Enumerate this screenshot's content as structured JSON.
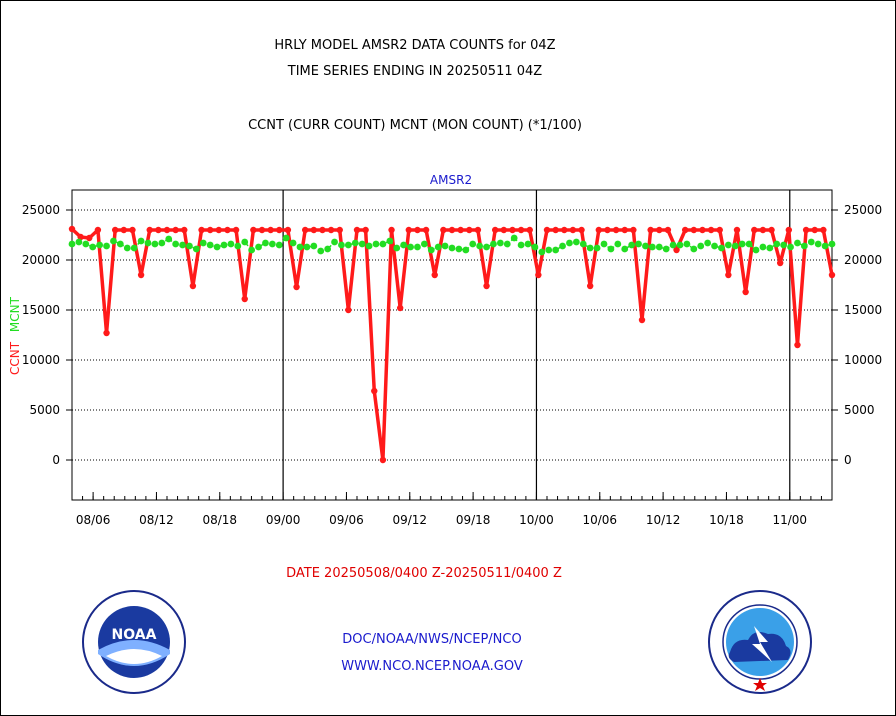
{
  "header": {
    "title_line1": "HRLY MODEL AMSR2 DATA COUNTS for 04Z",
    "title_line2": "TIME SERIES ENDING IN 20250511 04Z",
    "subtitle": "CCNT (CURR COUNT) MCNT (MON COUNT) (*1/100)"
  },
  "footer": {
    "date_range": "DATE 20250508/0400 Z-20250511/0400 Z",
    "org_line1": "DOC/NOAA/NWS/NCEP/NCO",
    "org_line2": "WWW.NCO.NCEP.NOAA.GOV"
  },
  "logos": {
    "left": {
      "icon": "noaa-logo-icon",
      "text": "NOAA"
    },
    "right": {
      "icon": "nws-logo-icon"
    }
  },
  "colors": {
    "ccnt": "#ff1a1a",
    "mcnt": "#22dd22",
    "title_blue": "#1a1acd",
    "date_red": "#e00000"
  },
  "chart_data": {
    "type": "line",
    "title": "AMSR2",
    "ylabel_left": [
      "CCNT",
      "MCNT"
    ],
    "ylim": [
      -4000,
      27000
    ],
    "yticks": [
      0,
      5000,
      10000,
      15000,
      20000,
      25000
    ],
    "ytick_labels": [
      "0",
      "5000",
      "10000",
      "15000",
      "20000",
      "25000"
    ],
    "x_range_hours": [
      0,
      72
    ],
    "x_ticks": [
      {
        "hour": 2,
        "label": "08/06"
      },
      {
        "hour": 8,
        "label": "08/12"
      },
      {
        "hour": 14,
        "label": "08/18"
      },
      {
        "hour": 20,
        "label": "09/00"
      },
      {
        "hour": 26,
        "label": "09/06"
      },
      {
        "hour": 32,
        "label": "09/12"
      },
      {
        "hour": 38,
        "label": "09/18"
      },
      {
        "hour": 44,
        "label": "10/00"
      },
      {
        "hour": 50,
        "label": "10/06"
      },
      {
        "hour": 56,
        "label": "10/12"
      },
      {
        "hour": 62,
        "label": "10/18"
      },
      {
        "hour": 68,
        "label": "11/00"
      }
    ],
    "day_boundaries_hours": [
      20,
      44,
      68
    ],
    "grid": true,
    "series": [
      {
        "name": "CCNT",
        "values": [
          23100,
          22300,
          22200,
          23000,
          12700,
          23000,
          23000,
          23000,
          18500,
          23000,
          23000,
          23000,
          23000,
          23000,
          17400,
          23000,
          23000,
          23000,
          23000,
          23000,
          16100,
          23000,
          23000,
          23000,
          23000,
          23000,
          17300,
          23000,
          23000,
          23000,
          23000,
          23000,
          15000,
          23000,
          23000,
          6900,
          0,
          23000,
          15200,
          23000,
          23000,
          23000,
          18500,
          23000,
          23000,
          23000,
          23000,
          23000,
          17400,
          23000,
          23000,
          23000,
          23000,
          23000,
          18500,
          23000,
          23000,
          23000,
          23000,
          23000,
          17400,
          23000,
          23000,
          23000,
          23000,
          23000,
          14000,
          23000,
          23000,
          23000,
          21000,
          23000,
          23000,
          23000,
          23000,
          23000,
          18500,
          23000,
          16800,
          23000,
          23000,
          23000,
          19700,
          23000,
          11500,
          23000,
          23000,
          23000,
          18500
        ]
      },
      {
        "name": "MCNT",
        "values": [
          21600,
          21800,
          21600,
          21300,
          21500,
          21400,
          21900,
          21600,
          21200,
          21200,
          21900,
          21700,
          21600,
          21700,
          22100,
          21600,
          21500,
          21400,
          21100,
          21700,
          21500,
          21300,
          21500,
          21600,
          21400,
          21800,
          21000,
          21300,
          21700,
          21600,
          21500,
          22200,
          21700,
          21300,
          21300,
          21400,
          20900,
          21100,
          21800,
          21500,
          21500,
          21700,
          21600,
          21400,
          21600,
          21600,
          21900,
          21200,
          21500,
          21300,
          21300,
          21600,
          21000,
          21300,
          21400,
          21200,
          21100,
          21000,
          21600,
          21400,
          21300,
          21600,
          21700,
          21600,
          22200,
          21500,
          21600,
          21300,
          20800,
          21000,
          21000,
          21400,
          21700,
          21800,
          21600,
          21200,
          21200,
          21600,
          21100,
          21600,
          21100,
          21500,
          21600,
          21400,
          21300,
          21300,
          21100,
          21500,
          21500,
          21600,
          21100,
          21400,
          21700,
          21400,
          21200,
          21500,
          21400,
          21600,
          21600,
          21000,
          21300,
          21200,
          21600,
          21500,
          21300,
          21700,
          21400,
          21800,
          21600,
          21400,
          21600
        ]
      }
    ]
  }
}
